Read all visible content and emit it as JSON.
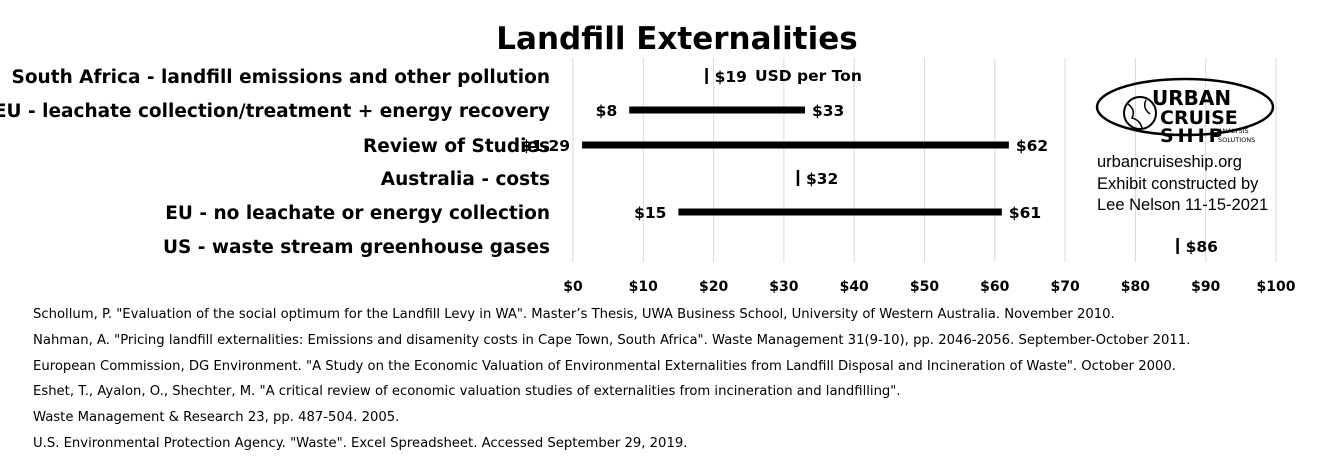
{
  "chart_data": {
    "type": "bar",
    "title": "Landfill Externalities",
    "unit_note": "USD per Ton",
    "xlim": [
      0,
      100
    ],
    "x_ticks": [
      "$0",
      "$10",
      "$20",
      "$30",
      "$40",
      "$50",
      "$60",
      "$70",
      "$80",
      "$90",
      "$100"
    ],
    "grid": true,
    "categories": [
      {
        "label": "South Africa - landfill emissions and other pollution",
        "low": 19,
        "high": 19,
        "low_label": "",
        "high_label": "$19"
      },
      {
        "label": "EU - leachate collection/treatment + energy recovery",
        "low": 8,
        "high": 33,
        "low_label": "$8",
        "high_label": "$33"
      },
      {
        "label": "Review of Studies",
        "low": 1.29,
        "high": 62,
        "low_label": "$1.29",
        "high_label": "$62"
      },
      {
        "label": "Australia - costs",
        "low": 32,
        "high": 32,
        "low_label": "",
        "high_label": "$32"
      },
      {
        "label": "EU - no leachate or energy collection",
        "low": 15,
        "high": 61,
        "low_label": "$15",
        "high_label": "$61"
      },
      {
        "label": "US - waste stream greenhouse gases",
        "low": 86,
        "high": 86,
        "low_label": "",
        "high_label": "$86"
      }
    ]
  },
  "credit": {
    "logo_text": [
      "URBAN",
      "CRUISE",
      "SHIP",
      "ANALYSIS",
      "SOLUTIONS"
    ],
    "website": "urbancruiseship.org",
    "line2": "Exhibit constructed by",
    "line3": "Lee Nelson 11-15-2021"
  },
  "references": [
    "Schollum, P. \"Evaluation of the social optimum for the Landfill Levy in WA\". Master’s Thesis, UWA Business School, University of Western Australia. November 2010.",
    "Nahman, A. \"Pricing landfill externalities: Emissions and disamenity costs in Cape Town, South Africa\". Waste Management 31(9-10), pp. 2046-2056. September-October 2011.",
    "European Commission, DG Environment. \"A Study on the Economic Valuation of Environmental Externalities from Landfill Disposal and Incineration of Waste\". October 2000.",
    "Eshet, T., Ayalon, O., Shechter, M. \"A critical review of economic valuation studies of externalities from incineration and landfilling\".",
    "Waste Management & Research 23, pp. 487-504. 2005.",
    "U.S. Environmental Protection Agency. \"Waste\". Excel Spreadsheet. Accessed September 29, 2019."
  ]
}
